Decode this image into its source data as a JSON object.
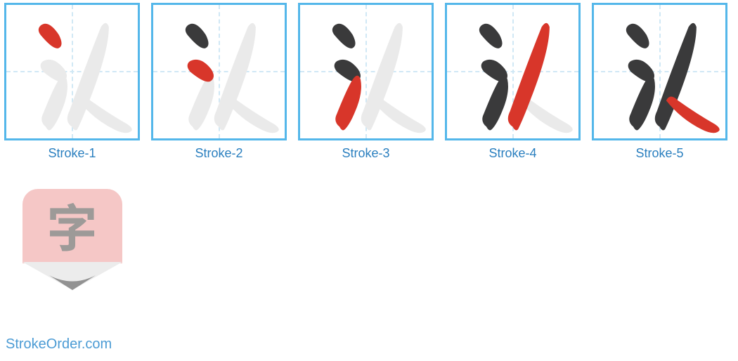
{
  "colors": {
    "box_border": "#54b7ea",
    "guide_line": "#d0e8f5",
    "label_text": "#2a7fbf",
    "logo_body": "#f5c7c6",
    "logo_char": "#9d9a98",
    "watermark": "#4b9bd4",
    "stroke_done": "#3a3a3b",
    "stroke_current": "#d8362a",
    "stroke_future": "#eaeaea",
    "tip_light": "#ececec",
    "tip_dark": "#929292"
  },
  "character_glyph": "氼",
  "strokes": [
    {
      "label": "Stroke-1"
    },
    {
      "label": "Stroke-2"
    },
    {
      "label": "Stroke-3"
    },
    {
      "label": "Stroke-4"
    },
    {
      "label": "Stroke-5"
    }
  ],
  "paths": [
    "M 26 22 Q 23 18 26 15 Q 32 10 40 22 Q 44 30 40 32 Q 36 34 26 22 Z",
    "M 28 50 Q 24 45 28 42 Q 36 38 44 48 Q 48 54 44 57 Q 40 60 28 50 Z",
    "M 30 92 Q 25 88 28 82 Q 36 62 40 56 Q 44 50 46 56 Q 48 66 42 80 Q 38 90 34 94 Q 32 96 30 92 Z",
    "M 50 92 Q 44 88 48 80 Q 60 46 72 16 Q 76 10 78 16 Q 78 34 64 70 Q 58 86 54 94 Q 52 96 50 92 Z",
    "M 55 72 Q 58 66 64 72 Q 78 82 92 90 Q 98 94 94 96 Q 90 98 82 94 Q 66 86 55 72 Z"
  ],
  "logo": {
    "char": "字"
  },
  "watermark": "StrokeOrder.com"
}
